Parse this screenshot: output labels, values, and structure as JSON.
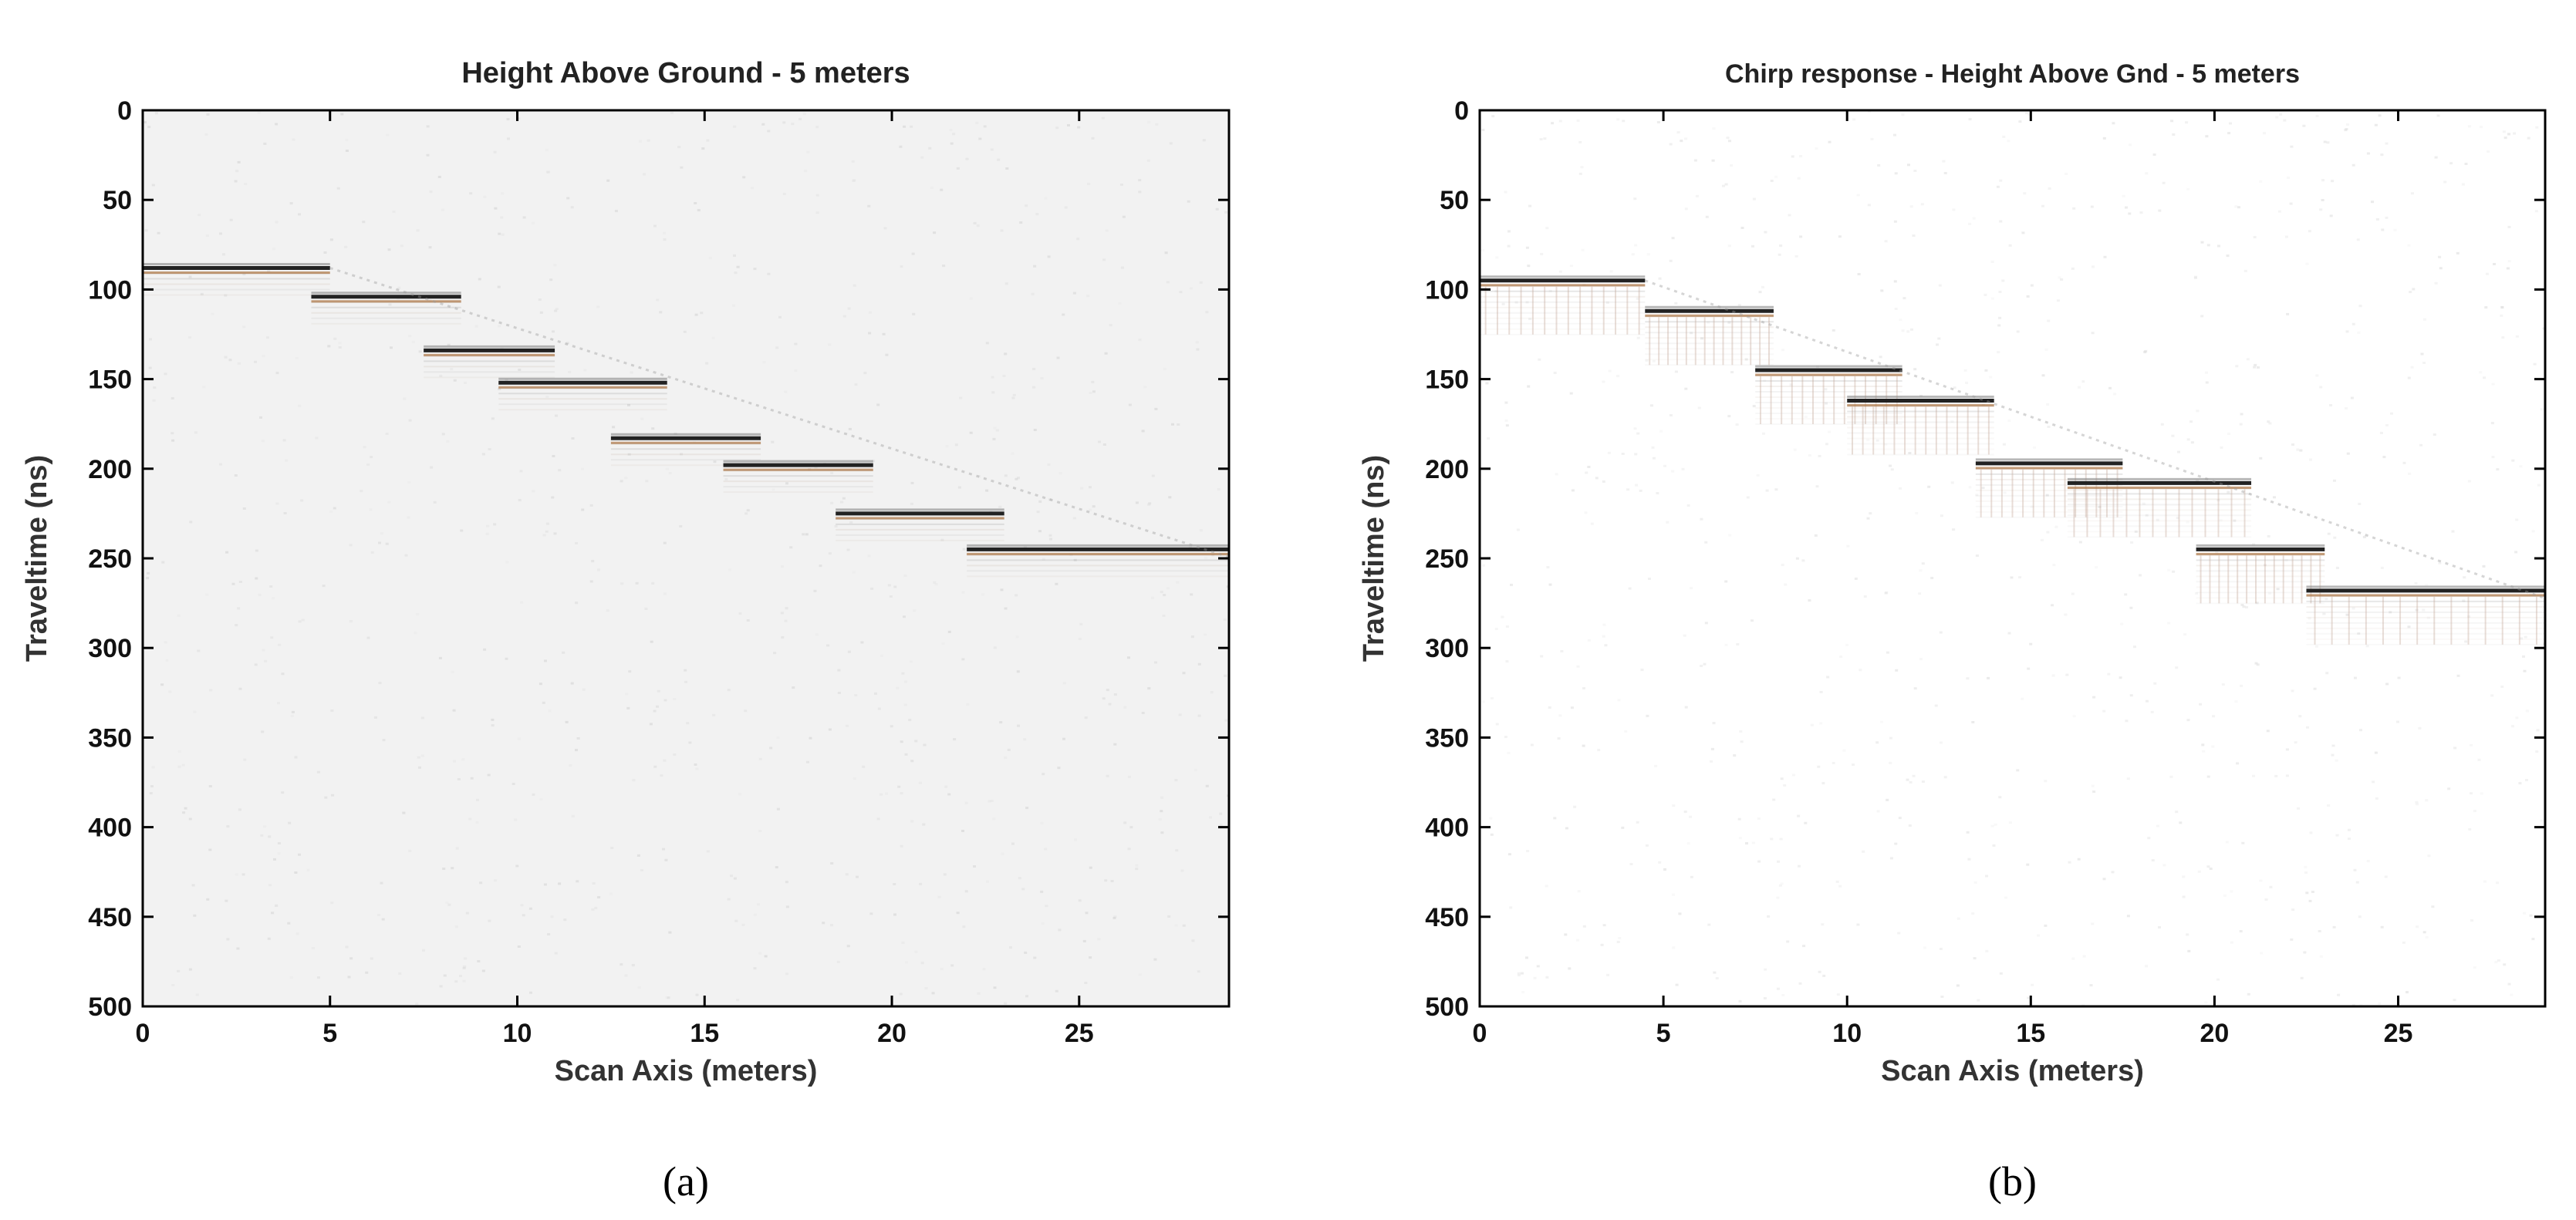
{
  "chart_data": [
    {
      "type": "heatmap",
      "panel_label": "(a)",
      "title": "Height Above Ground - 5 meters",
      "xlabel": "Scan Axis (meters)",
      "ylabel": "Traveltime (ns)",
      "xlim": [
        0,
        29
      ],
      "ylim": [
        500,
        0
      ],
      "xticks": [
        0,
        5,
        10,
        15,
        20,
        25
      ],
      "yticks": [
        0,
        50,
        100,
        150,
        200,
        250,
        300,
        350,
        400,
        450,
        500
      ],
      "grid": false,
      "background": "#f2f2f2",
      "reflection_segments": [
        {
          "x0": 0.0,
          "x1": 5.0,
          "t": 88
        },
        {
          "x0": 4.5,
          "x1": 8.5,
          "t": 104
        },
        {
          "x0": 7.5,
          "x1": 11.0,
          "t": 134
        },
        {
          "x0": 9.5,
          "x1": 14.0,
          "t": 152
        },
        {
          "x0": 12.5,
          "x1": 16.5,
          "t": 183
        },
        {
          "x0": 15.5,
          "x1": 19.5,
          "t": 198
        },
        {
          "x0": 18.5,
          "x1": 23.0,
          "t": 225
        },
        {
          "x0": 22.0,
          "x1": 29.0,
          "t": 245
        }
      ]
    },
    {
      "type": "heatmap",
      "panel_label": "(b)",
      "title": "Chirp response - Height Above Gnd - 5 meters",
      "xlabel": "Scan Axis (meters)",
      "ylabel": "Traveltime (ns)",
      "xlim": [
        0,
        29
      ],
      "ylim": [
        500,
        0
      ],
      "xticks": [
        0,
        5,
        10,
        15,
        20,
        25
      ],
      "yticks": [
        0,
        50,
        100,
        150,
        200,
        250,
        300,
        350,
        400,
        450,
        500
      ],
      "grid": false,
      "background": "#ffffff",
      "reflection_segments": [
        {
          "x0": 0.0,
          "x1": 4.5,
          "t": 95
        },
        {
          "x0": 4.5,
          "x1": 8.0,
          "t": 112
        },
        {
          "x0": 7.5,
          "x1": 11.5,
          "t": 145
        },
        {
          "x0": 10.0,
          "x1": 14.0,
          "t": 162
        },
        {
          "x0": 13.5,
          "x1": 17.5,
          "t": 197
        },
        {
          "x0": 16.0,
          "x1": 21.0,
          "t": 208
        },
        {
          "x0": 19.5,
          "x1": 23.0,
          "t": 245
        },
        {
          "x0": 22.5,
          "x1": 29.0,
          "t": 268
        }
      ]
    }
  ]
}
